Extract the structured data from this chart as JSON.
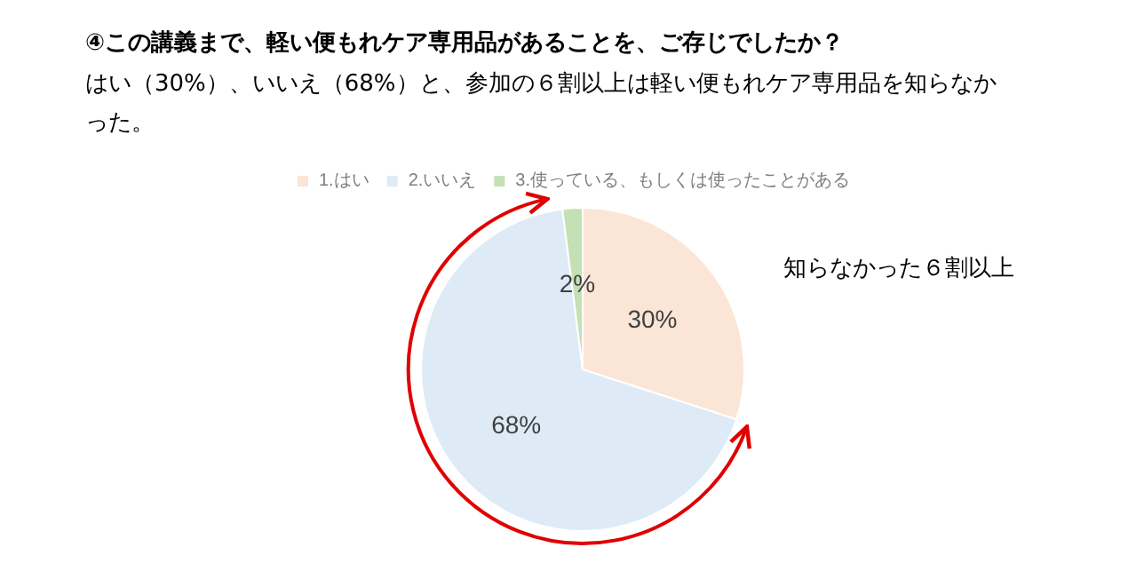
{
  "chart_data": {
    "type": "pie",
    "title": "④この講義まで、軽い便もれケア専用品があることを、ご存じでしたか？",
    "subtitle": "はい（30%）、いいえ（68%）と、参加の６割以上は軽い便もれケア専用品を知らなかった。",
    "annotations": [
      "知らなかった６割以上"
    ],
    "categories": [
      "1.はい",
      "2.いいえ",
      "3.使っている、もしくは使ったことがある"
    ],
    "values": [
      30,
      68,
      2
    ],
    "colors": [
      "#fbe5d6",
      "#deebf7",
      "#c5e0b4"
    ],
    "value_labels": [
      "30%",
      "68%",
      "2%"
    ],
    "legend": "top"
  }
}
